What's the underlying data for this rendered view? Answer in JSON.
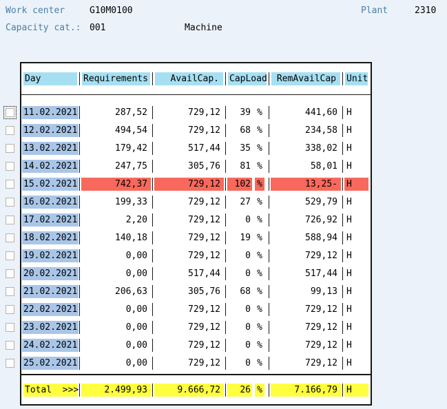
{
  "header": {
    "work_center_label": "Work center",
    "work_center_value": "G10M0100",
    "plant_label": "Plant",
    "plant_value": "2310",
    "capacity_cat_label": "Capacity cat.:",
    "capacity_cat_value": "001",
    "capacity_cat_desc": "Machine"
  },
  "table": {
    "columns": [
      "Day",
      "Requirements",
      "AvailCap.",
      "CapLoad",
      "RemAvailCap",
      "Unit"
    ],
    "percent_sign": "%",
    "rows": [
      {
        "day": "11.02.2021",
        "requirements": "287,52",
        "availcap": "729,12",
        "capload": "39",
        "remavailcap": "441,60",
        "unit": "H",
        "highlight": "none",
        "checkbox_focused": true
      },
      {
        "day": "12.02.2021",
        "requirements": "494,54",
        "availcap": "729,12",
        "capload": "68",
        "remavailcap": "234,58",
        "unit": "H",
        "highlight": "none",
        "checkbox_focused": false
      },
      {
        "day": "13.02.2021",
        "requirements": "179,42",
        "availcap": "517,44",
        "capload": "35",
        "remavailcap": "338,02",
        "unit": "H",
        "highlight": "none",
        "checkbox_focused": false
      },
      {
        "day": "14.02.2021",
        "requirements": "247,75",
        "availcap": "305,76",
        "capload": "81",
        "remavailcap": "58,01",
        "unit": "H",
        "highlight": "none",
        "checkbox_focused": false
      },
      {
        "day": "15.02.2021",
        "requirements": "742,37",
        "availcap": "729,12",
        "capload": "102",
        "remavailcap": "13,25-",
        "unit": "H",
        "highlight": "red",
        "checkbox_focused": false
      },
      {
        "day": "16.02.2021",
        "requirements": "199,33",
        "availcap": "729,12",
        "capload": "27",
        "remavailcap": "529,79",
        "unit": "H",
        "highlight": "none",
        "checkbox_focused": false
      },
      {
        "day": "17.02.2021",
        "requirements": "2,20",
        "availcap": "729,12",
        "capload": "0",
        "remavailcap": "726,92",
        "unit": "H",
        "highlight": "none",
        "checkbox_focused": false
      },
      {
        "day": "18.02.2021",
        "requirements": "140,18",
        "availcap": "729,12",
        "capload": "19",
        "remavailcap": "588,94",
        "unit": "H",
        "highlight": "none",
        "checkbox_focused": false
      },
      {
        "day": "19.02.2021",
        "requirements": "0,00",
        "availcap": "729,12",
        "capload": "0",
        "remavailcap": "729,12",
        "unit": "H",
        "highlight": "none",
        "checkbox_focused": false
      },
      {
        "day": "20.02.2021",
        "requirements": "0,00",
        "availcap": "517,44",
        "capload": "0",
        "remavailcap": "517,44",
        "unit": "H",
        "highlight": "none",
        "checkbox_focused": false
      },
      {
        "day": "21.02.2021",
        "requirements": "206,63",
        "availcap": "305,76",
        "capload": "68",
        "remavailcap": "99,13",
        "unit": "H",
        "highlight": "none",
        "checkbox_focused": false
      },
      {
        "day": "22.02.2021",
        "requirements": "0,00",
        "availcap": "729,12",
        "capload": "0",
        "remavailcap": "729,12",
        "unit": "H",
        "highlight": "none",
        "checkbox_focused": false
      },
      {
        "day": "23.02.2021",
        "requirements": "0,00",
        "availcap": "729,12",
        "capload": "0",
        "remavailcap": "729,12",
        "unit": "H",
        "highlight": "none",
        "checkbox_focused": false
      },
      {
        "day": "24.02.2021",
        "requirements": "0,00",
        "availcap": "729,12",
        "capload": "0",
        "remavailcap": "729,12",
        "unit": "H",
        "highlight": "none",
        "checkbox_focused": false
      },
      {
        "day": "25.02.2021",
        "requirements": "0,00",
        "availcap": "729,12",
        "capload": "0",
        "remavailcap": "729,12",
        "unit": "H",
        "highlight": "none",
        "checkbox_focused": false
      }
    ],
    "total": {
      "label": "Total  >>>",
      "requirements": "2.499,93",
      "availcap": "9.666,72",
      "capload": "26",
      "remavailcap": "7.166,79",
      "unit": "H"
    }
  },
  "colors": {
    "page_bg": "#ecf2f9",
    "label_text": "#4a80a8",
    "header_highlight": "#a6dff2",
    "day_highlight": "#a9c6e8",
    "red_highlight": "#f7695c",
    "yellow_highlight": "#feff3e"
  }
}
